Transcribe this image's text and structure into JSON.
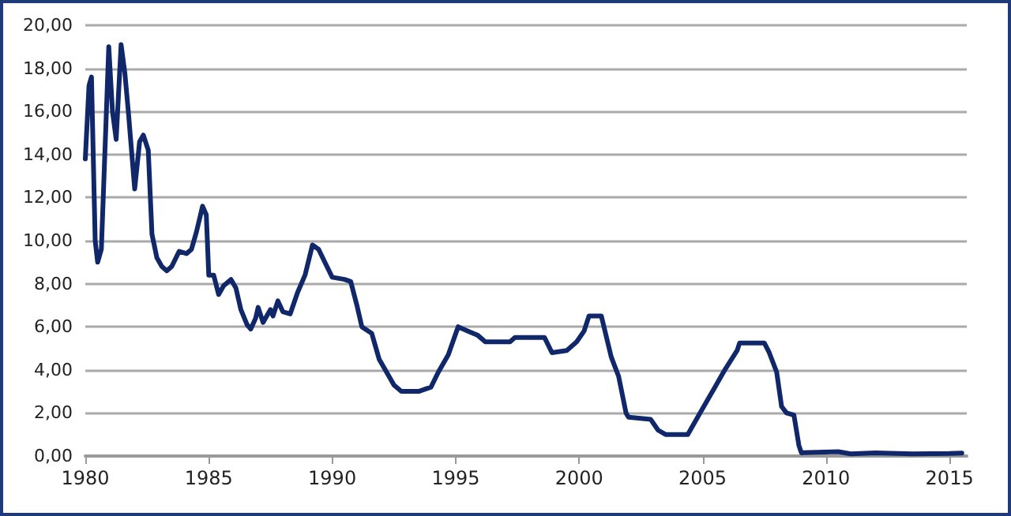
{
  "chart_data": {
    "type": "line",
    "color": "#10286a",
    "line_style": "solid",
    "marker": "none",
    "grid": "y",
    "x": [
      1980.0,
      1980.15,
      1980.25,
      1980.4,
      1980.5,
      1980.65,
      1980.95,
      1981.1,
      1981.25,
      1981.45,
      1981.6,
      1981.75,
      1982.0,
      1982.2,
      1982.35,
      1982.55,
      1982.7,
      1982.9,
      1983.1,
      1983.3,
      1983.5,
      1983.8,
      1984.1,
      1984.3,
      1984.5,
      1984.75,
      1984.9,
      1985.0,
      1985.2,
      1985.4,
      1985.6,
      1985.9,
      1986.1,
      1986.3,
      1986.55,
      1986.7,
      1986.9,
      1987.0,
      1987.2,
      1987.5,
      1987.6,
      1987.8,
      1988.0,
      1988.3,
      1988.6,
      1988.9,
      1989.2,
      1989.45,
      1989.7,
      1990.0,
      1990.5,
      1990.75,
      1991.0,
      1991.2,
      1991.6,
      1991.9,
      1992.2,
      1992.5,
      1992.8,
      1993.5,
      1994.0,
      1994.3,
      1994.7,
      1995.1,
      1995.5,
      1995.9,
      1996.2,
      1997.2,
      1997.4,
      1998.6,
      1998.9,
      1999.5,
      1999.9,
      2000.2,
      2000.4,
      2000.9,
      2001.3,
      2001.6,
      2001.9,
      2002.0,
      2002.9,
      2003.2,
      2003.5,
      2004.4,
      2004.8,
      2005.2,
      2005.5,
      2005.9,
      2006.4,
      2006.5,
      2007.5,
      2007.7,
      2008.0,
      2008.2,
      2008.4,
      2008.7,
      2008.9,
      2009.0,
      2010.5,
      2011.0,
      2012.0,
      2013.5,
      2015.0,
      2015.5
    ],
    "values": [
      13.8,
      17.2,
      17.6,
      10.0,
      9.0,
      9.6,
      19.0,
      16.0,
      14.7,
      19.1,
      17.8,
      15.9,
      12.4,
      14.6,
      14.9,
      14.2,
      10.3,
      9.2,
      8.8,
      8.6,
      8.8,
      9.5,
      9.4,
      9.6,
      10.4,
      11.6,
      11.2,
      8.4,
      8.4,
      7.5,
      7.9,
      8.2,
      7.8,
      6.8,
      6.1,
      5.9,
      6.4,
      6.9,
      6.2,
      6.8,
      6.5,
      7.2,
      6.7,
      6.6,
      7.6,
      8.4,
      9.8,
      9.6,
      9.0,
      8.3,
      8.2,
      8.1,
      7.0,
      6.0,
      5.7,
      4.5,
      3.9,
      3.3,
      3.0,
      3.0,
      3.2,
      3.9,
      4.7,
      6.0,
      5.8,
      5.6,
      5.3,
      5.3,
      5.5,
      5.5,
      4.8,
      4.9,
      5.3,
      5.8,
      6.5,
      6.5,
      4.6,
      3.7,
      2.0,
      1.8,
      1.7,
      1.2,
      1.0,
      1.0,
      1.8,
      2.6,
      3.2,
      4.0,
      4.9,
      5.25,
      5.25,
      4.8,
      3.9,
      2.3,
      2.0,
      1.9,
      0.5,
      0.15,
      0.2,
      0.1,
      0.15,
      0.1,
      0.12,
      0.14
    ],
    "xlim": [
      1980,
      2015.7
    ],
    "xticks": [
      1980,
      1985,
      1990,
      1995,
      2000,
      2005,
      2010,
      2015
    ],
    "ylim": [
      0,
      20
    ],
    "yticks": [
      {
        "value": 0,
        "label": "0,00"
      },
      {
        "value": 2,
        "label": "2,00"
      },
      {
        "value": 4,
        "label": "4,00"
      },
      {
        "value": 6,
        "label": "6,00"
      },
      {
        "value": 8,
        "label": "8,00"
      },
      {
        "value": 10,
        "label": "10,00"
      },
      {
        "value": 12,
        "label": "12,00"
      },
      {
        "value": 14,
        "label": "14,00"
      },
      {
        "value": 16,
        "label": "16,00"
      },
      {
        "value": 18,
        "label": "18,00"
      },
      {
        "value": 20,
        "label": "20,00"
      }
    ]
  }
}
